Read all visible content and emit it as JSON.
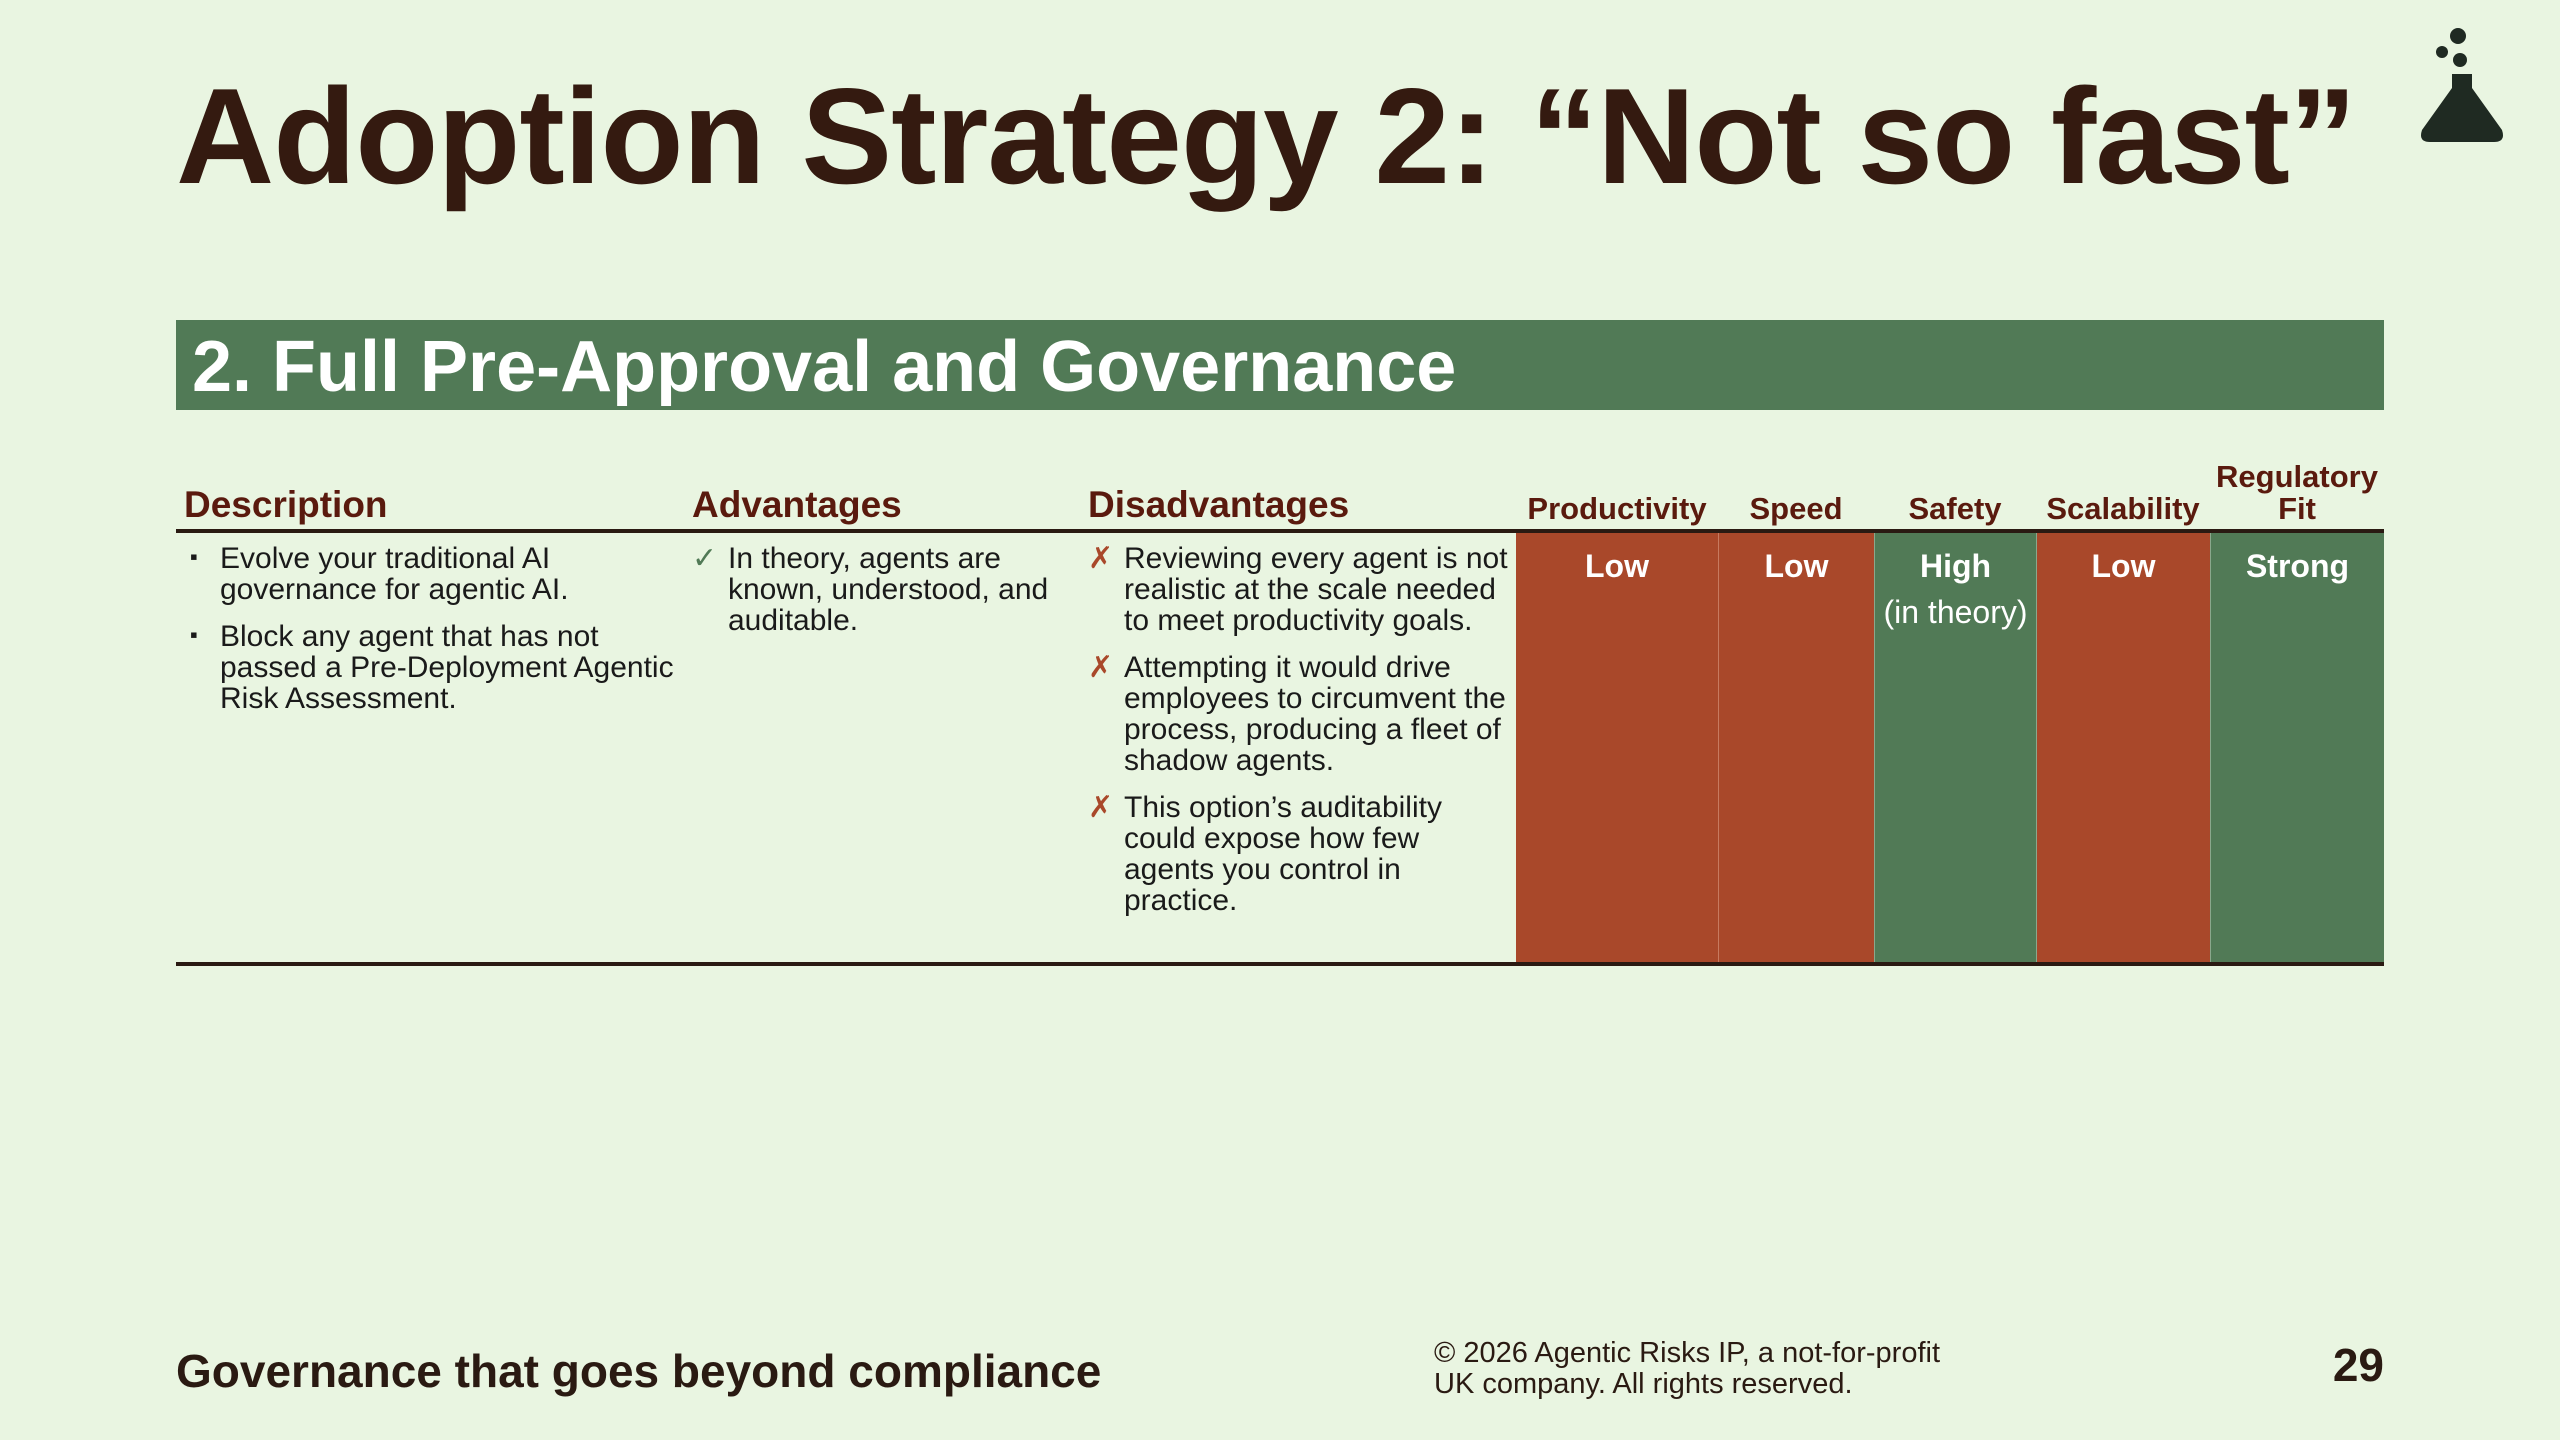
{
  "slide": {
    "title": "Adoption Strategy 2: “Not so fast”",
    "section_title": "2. Full Pre-Approval and Governance",
    "page_number": "29"
  },
  "table": {
    "headers": {
      "description": "Description",
      "advantages": "Advantages",
      "disadvantages": "Disadvantages",
      "productivity": "Productivity",
      "speed": "Speed",
      "safety": "Safety",
      "scalability": "Scalability",
      "regulatory_fit_line1": "Regulatory",
      "regulatory_fit_line2": "Fit"
    },
    "description": [
      "Evolve your traditional AI governance for agentic AI.",
      "Block any agent that has not passed a Pre-Deployment Agentic Risk Assessment."
    ],
    "advantages": [
      "In theory, agents are known, understood, and auditable."
    ],
    "disadvantages": [
      "Reviewing every agent is not realistic at the scale needed to meet productivity goals.",
      "Attempting it would drive employees to circumvent the process, producing a fleet of shadow agents.",
      "This option’s auditability could expose how few agents you control in practice."
    ],
    "markers": {
      "bullet": "▪",
      "check": "✓",
      "cross": "✗"
    },
    "ratings": {
      "productivity": "Low",
      "speed": "Low",
      "safety": "High",
      "safety_note": "(in theory)",
      "scalability": "Low",
      "regulatory_fit": "Strong"
    },
    "colors": {
      "negative": "#a9482a",
      "positive": "#517a56"
    }
  },
  "footer": {
    "tagline": "Governance that goes beyond compliance",
    "copyright_line1": "© 2026 Agentic Risks IP, a not-for-profit",
    "copyright_line2": "UK company. All rights reserved."
  },
  "icons": {
    "logo": "flask-icon"
  }
}
